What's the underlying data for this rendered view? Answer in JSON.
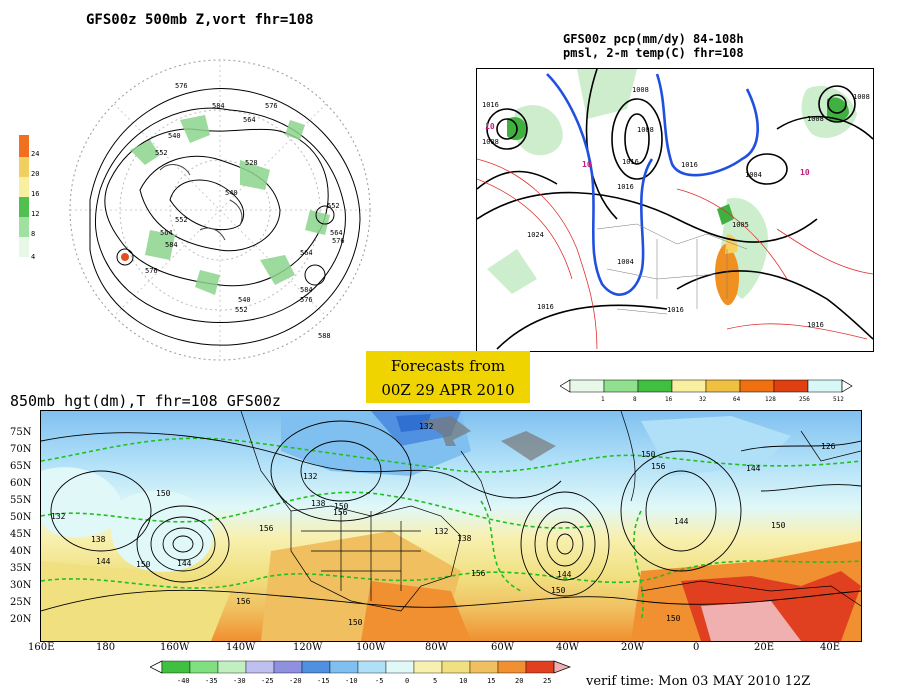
{
  "panels": {
    "top_left_title": "GFS00z   500mb  Z,vort    fhr=108",
    "top_right_title_line1": "GFS00z pcp(mm/dy) 84-108h",
    "top_right_title_line2": "pmsl, 2-m temp(C)  fhr=108",
    "bottom_title": "850mb hgt(dm),T   fhr=108 GFS00z"
  },
  "banner": {
    "line1": "Forecasts from",
    "line2": "00Z 29 APR 2010"
  },
  "verif_time": "verif time: Mon 03 MAY 2010 12Z",
  "vort_legend": {
    "labels": [
      "24",
      "20",
      "16",
      "12",
      "8",
      "4"
    ],
    "colors": [
      "#f07020",
      "#f0d060",
      "#f8f0a0",
      "#50c050",
      "#a0e0a0",
      "#ffffff"
    ]
  },
  "pcp_legend": {
    "labels": [
      "1",
      "8",
      "16",
      "32",
      "64",
      "128",
      "256",
      "512"
    ],
    "colors": [
      "#e8f8e8",
      "#90e090",
      "#40c040",
      "#f8f0a0",
      "#f0c040",
      "#f07010",
      "#e04010",
      "#d8f8f8"
    ]
  },
  "temp_legend": {
    "labels": [
      "-40",
      "-35",
      "-30",
      "-25",
      "-20",
      "-15",
      "-10",
      "-5",
      "0",
      "5",
      "10",
      "15",
      "20",
      "25"
    ],
    "colors": [
      "#40c040",
      "#80e080",
      "#c0f0c0",
      "#9090e0",
      "#5090e0",
      "#80c0f0",
      "#b0e0f8",
      "#e0f8f8",
      "#ffffff",
      "#f8f0b0",
      "#f0e080",
      "#f0c060",
      "#f09030",
      "#e04020",
      "#f0b0b0"
    ]
  },
  "lat_labels": [
    "75N",
    "70N",
    "65N",
    "60N",
    "55N",
    "50N",
    "45N",
    "40N",
    "35N",
    "30N",
    "25N",
    "20N"
  ],
  "lon_labels": [
    "160E",
    "180",
    "160W",
    "140W",
    "120W",
    "100W",
    "80W",
    "60W",
    "40W",
    "20W",
    "0",
    "20E",
    "40E"
  ],
  "map_labels_500": [
    "576",
    "584",
    "576",
    "564",
    "540",
    "552",
    "528",
    "540",
    "552",
    "564",
    "576",
    "584",
    "552",
    "564",
    "576",
    "584",
    "588",
    "576",
    "564",
    "540",
    "552"
  ],
  "map_labels_pmsl": [
    "1016",
    "1008",
    "1008",
    "1008",
    "1016",
    "1016",
    "1024",
    "1016",
    "1016",
    "1016",
    "1016",
    "1004",
    "1004",
    "1008",
    "1008",
    "10",
    "10",
    "10",
    "1005"
  ],
  "map_labels_850": [
    "132",
    "150",
    "132",
    "138",
    "144",
    "150",
    "156",
    "144",
    "156",
    "138",
    "132",
    "150",
    "156",
    "150",
    "138",
    "144",
    "150",
    "132",
    "126",
    "144",
    "150",
    "156",
    "150",
    "144",
    "150",
    "156"
  ]
}
